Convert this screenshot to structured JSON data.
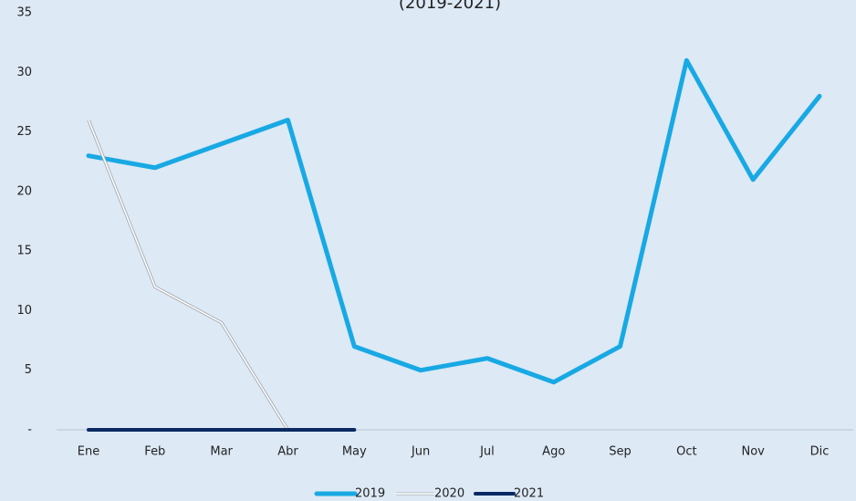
{
  "chart_data": {
    "type": "line",
    "subtitle": "(2019-2021)",
    "categories": [
      "Ene",
      "Feb",
      "Mar",
      "Abr",
      "May",
      "Jun",
      "Jul",
      "Ago",
      "Sep",
      "Oct",
      "Nov",
      "Dic"
    ],
    "series": [
      {
        "name": "2019",
        "color": "#18a9e4",
        "values": [
          23,
          22,
          24,
          26,
          7,
          5,
          6,
          4,
          7,
          31,
          21,
          28
        ]
      },
      {
        "name": "2020",
        "color": "#ffffff",
        "values": [
          26,
          12,
          9,
          0,
          null,
          null,
          null,
          null,
          null,
          null,
          null,
          null
        ]
      },
      {
        "name": "2021",
        "color": "#0b2a63",
        "values": [
          0,
          0,
          0,
          0,
          0,
          null,
          null,
          null,
          null,
          null,
          null,
          null
        ]
      }
    ],
    "ylim": [
      0,
      35
    ],
    "yticks": [
      {
        "value": 0,
        "label": "-"
      },
      5,
      10,
      15,
      20,
      25,
      30,
      35
    ]
  }
}
